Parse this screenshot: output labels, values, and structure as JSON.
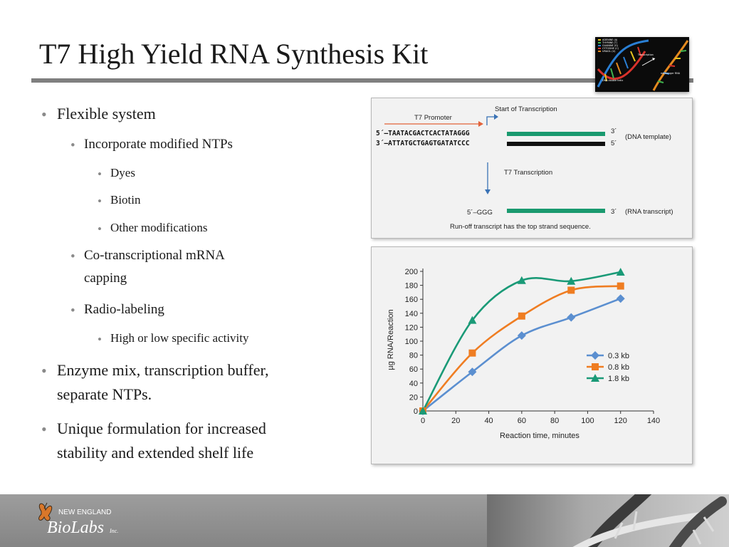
{
  "slide": {
    "title": "T7 High Yield RNA Synthesis Kit"
  },
  "bullets": {
    "b1": "Flexible system",
    "b1_1": "Incorporate modified NTPs",
    "b1_1_1": "Dyes",
    "b1_1_2": "Biotin",
    "b1_1_3": "Other modifications",
    "b1_2_line1": "Co-transcriptional mRNA",
    "b1_2_line2": "capping",
    "b1_3": "Radio-labeling",
    "b1_3_1": "High or low specific activity",
    "b2_line1": "Enzyme mix, transcription buffer,",
    "b2_line2": "separate NTPs.",
    "b3_line1": "Unique formulation for increased",
    "b3_line2": "stability and extended shelf life"
  },
  "thumbnail": {
    "legend": [
      "ADENINE (A)",
      "THYMINE (T)",
      "GUANINE (G)",
      "CYTOSINE (C)",
      "URACIL (U)"
    ],
    "label_dna": "DNA double helix",
    "label_transcription": "Transcription",
    "label_mrna": "messenger RNA"
  },
  "diagram": {
    "start_label": "Start of Transcription",
    "promoter_label": "T7 Promoter",
    "top_strand": "5´–TAATACGACTCACTATAGGG",
    "bottom_strand": "3´–ATTATGCTGAGTGATATCCC",
    "top_end": "3´",
    "bottom_end": "5´",
    "template_label": "(DNA template)",
    "transcription_label": "T7 Transcription",
    "rna_start": "5´–GGG",
    "rna_end": "3´",
    "rna_label": "(RNA transcript)",
    "caption": "Run-off transcript has the top strand sequence."
  },
  "chart_data": {
    "type": "line",
    "xlabel": "Reaction time, minutes",
    "ylabel": "µg RNA/Reaction",
    "xlim": [
      0,
      140
    ],
    "ylim": [
      0,
      200
    ],
    "xticks": [
      0,
      20,
      40,
      60,
      80,
      100,
      120,
      140
    ],
    "yticks": [
      0,
      20,
      40,
      60,
      80,
      100,
      120,
      140,
      160,
      180,
      200
    ],
    "grid": false,
    "legend_position": "right",
    "series": [
      {
        "name": "0.3 kb",
        "color": "#5b8fd0",
        "marker": "diamond",
        "x": [
          0,
          30,
          60,
          90,
          120
        ],
        "y": [
          0,
          56,
          108,
          134,
          161
        ]
      },
      {
        "name": "0.8 kb",
        "color": "#ef7d22",
        "marker": "square",
        "x": [
          0,
          30,
          60,
          90,
          120
        ],
        "y": [
          0,
          83,
          136,
          173,
          179
        ]
      },
      {
        "name": "1.8 kb",
        "color": "#1a9a77",
        "marker": "triangle",
        "x": [
          0,
          30,
          60,
          90,
          120
        ],
        "y": [
          0,
          130,
          187,
          186,
          199
        ]
      }
    ]
  },
  "footer": {
    "logo_top": "NEW ENGLAND",
    "logo_main": "BioLabs",
    "logo_suffix": "Inc."
  }
}
